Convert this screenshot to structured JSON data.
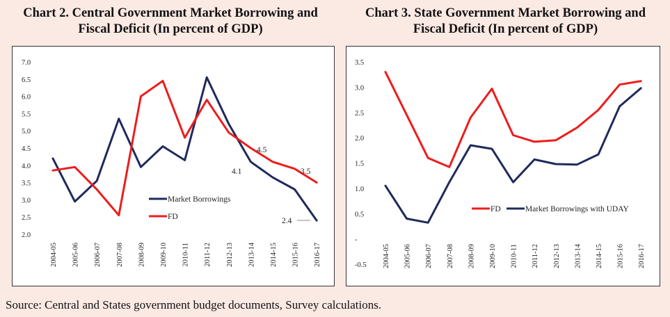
{
  "source_text": "Source: Central and States government budget documents, Survey calculations.",
  "chart_data": [
    {
      "type": "line",
      "title_line1": "Chart 2. Central Government Market Borrowing and",
      "title_line2": "Fiscal Deficit (In percent of GDP)",
      "categories": [
        "2004-05",
        "2005-06",
        "2006-07",
        "2007-08",
        "2008-09",
        "2009-10",
        "2010-11",
        "2011-12",
        "2012-13",
        "2013-14",
        "2014-15",
        "2015-16",
        "2016-17"
      ],
      "y_ticks": [
        "7.0",
        "6.5",
        "6.0",
        "5.5",
        "5.0",
        "4.5",
        "4.0",
        "3.5",
        "3.0",
        "2.5",
        "2.0"
      ],
      "ylim": [
        2.0,
        7.0
      ],
      "series": [
        {
          "name": "Market Borrowings",
          "color": "#1f2a5c",
          "values": [
            4.2,
            2.95,
            3.55,
            5.35,
            3.95,
            4.55,
            4.15,
            6.55,
            5.2,
            4.1,
            3.65,
            3.3,
            2.4
          ]
        },
        {
          "name": "FD",
          "color": "#ee1c1c",
          "values": [
            3.85,
            3.95,
            3.3,
            2.55,
            6.0,
            6.45,
            4.8,
            5.9,
            4.95,
            4.5,
            4.1,
            3.9,
            3.5
          ]
        }
      ],
      "data_labels": [
        "4.1",
        "4.5",
        "3.5",
        "2.4"
      ],
      "legend_position": "center-right"
    },
    {
      "type": "line",
      "title_line1": "Chart 3. State Government Market Borrowing and",
      "title_line2": "Fiscal Deficit  (In percent of GDP)",
      "categories": [
        "2004-05",
        "2005-06",
        "2006-07",
        "2007-08",
        "2008-09",
        "2009-10",
        "2010-11",
        "2011-12",
        "2012-13",
        "2013-14",
        "2014-15",
        "2015-16",
        "2016-17"
      ],
      "y_ticks": [
        "3.5",
        "3.0",
        "2.5",
        "2.0",
        "1.5",
        "1.0",
        "0.5",
        "-",
        "-0.5"
      ],
      "ylim": [
        -0.5,
        3.5
      ],
      "series": [
        {
          "name": "FD",
          "color": "#ee1c1c",
          "values": [
            3.3,
            2.45,
            1.6,
            1.42,
            2.4,
            2.97,
            2.05,
            1.92,
            1.95,
            2.2,
            2.55,
            3.05,
            3.12
          ]
        },
        {
          "name": "Market Borrowings with UDAY",
          "color": "#1f2a5c",
          "values": [
            1.05,
            0.4,
            0.32,
            1.12,
            1.85,
            1.78,
            1.12,
            1.57,
            1.48,
            1.47,
            1.67,
            2.62,
            2.98
          ]
        }
      ],
      "legend_position": "center-right"
    }
  ]
}
